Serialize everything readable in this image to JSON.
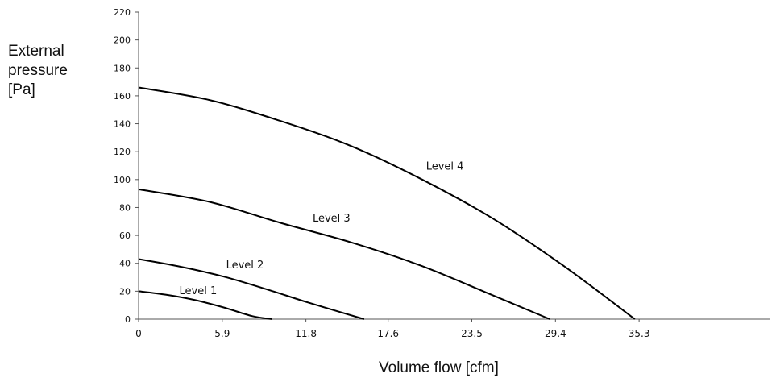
{
  "chart_data": {
    "type": "line",
    "xlabel": "Volume flow [cfm]",
    "ylabel_lines": [
      "External",
      "pressure",
      "[Pa]"
    ],
    "xlim": [
      0,
      44.5
    ],
    "ylim": [
      0,
      220
    ],
    "x_ticks": [
      "0",
      "5.9",
      "11.8",
      "17.6",
      "23.5",
      "29.4",
      "35.3"
    ],
    "x_tick_values": [
      0,
      5.9,
      11.8,
      17.6,
      23.5,
      29.4,
      35.3
    ],
    "y_ticks": [
      0,
      20,
      40,
      60,
      80,
      100,
      120,
      140,
      160,
      180,
      200,
      220
    ],
    "grid": false,
    "legend": "none",
    "series": [
      {
        "name": "Level 1",
        "x": [
          0,
          2,
          4,
          6,
          8,
          9.4
        ],
        "y": [
          20,
          17.4,
          13.6,
          8.4,
          2.2,
          0
        ],
        "label_at": [
          4.2,
          18
        ]
      },
      {
        "name": "Level 2",
        "x": [
          0,
          3,
          6,
          9,
          12,
          15.9
        ],
        "y": [
          43,
          37.5,
          30.5,
          21.5,
          11.8,
          0
        ],
        "label_at": [
          7.5,
          36.5
        ]
      },
      {
        "name": "Level 3",
        "x": [
          0,
          5,
          10,
          15,
          20,
          25,
          29
        ],
        "y": [
          93,
          84,
          69,
          55,
          38,
          17,
          0
        ],
        "label_at": [
          13.6,
          70
        ]
      },
      {
        "name": "Level 4",
        "x": [
          0,
          5,
          10,
          15,
          20,
          25,
          30,
          35.0
        ],
        "y": [
          166,
          157,
          142,
          124,
          100,
          72,
          38,
          0
        ],
        "label_at": [
          21.6,
          107
        ]
      }
    ]
  }
}
